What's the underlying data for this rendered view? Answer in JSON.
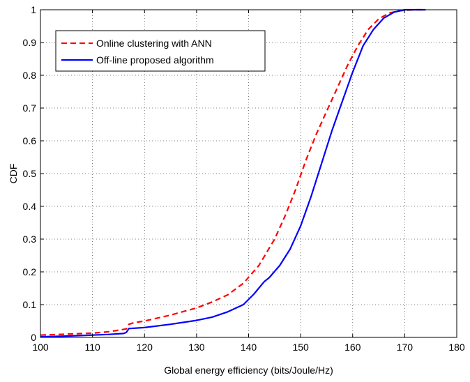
{
  "chart_data": {
    "type": "line",
    "title": "",
    "xlabel": "Global energy efficiency (bits/Joule/Hz)",
    "ylabel": "CDF",
    "xlim": [
      100,
      180
    ],
    "ylim": [
      0,
      1
    ],
    "xticks": [
      100,
      110,
      120,
      130,
      140,
      150,
      160,
      170,
      180
    ],
    "yticks": [
      0,
      0.1,
      0.2,
      0.3,
      0.4,
      0.5,
      0.6,
      0.7,
      0.8,
      0.9,
      1
    ],
    "xtick_labels": [
      "100",
      "110",
      "120",
      "130",
      "140",
      "150",
      "160",
      "170",
      "180"
    ],
    "ytick_labels": [
      "0",
      "0.1",
      "0.2",
      "0.3",
      "0.4",
      "0.5",
      "0.6",
      "0.7",
      "0.8",
      "0.9",
      "1"
    ],
    "grid": true,
    "legend_position": "top-left",
    "series": [
      {
        "name": "Online clustering with ANN",
        "color": "#ff0000",
        "style": "dashed",
        "x": [
          100,
          105,
          110,
          113,
          115,
          116.5,
          117,
          118,
          120,
          125,
          130,
          133,
          136,
          139,
          142,
          145,
          147,
          149,
          151,
          153,
          155,
          157,
          159,
          161,
          163,
          165,
          167,
          169,
          172,
          174
        ],
        "y": [
          0.007,
          0.01,
          0.013,
          0.017,
          0.022,
          0.026,
          0.04,
          0.045,
          0.05,
          0.068,
          0.09,
          0.108,
          0.13,
          0.165,
          0.22,
          0.3,
          0.37,
          0.45,
          0.54,
          0.62,
          0.69,
          0.76,
          0.83,
          0.89,
          0.94,
          0.972,
          0.99,
          0.997,
          1.0,
          1.0
        ]
      },
      {
        "name": "Off-line proposed algorithm",
        "color": "#0000ff",
        "style": "solid",
        "x": [
          100,
          105,
          110,
          113,
          116,
          116.5,
          117,
          120,
          125,
          130,
          133,
          136,
          139,
          141,
          143,
          144,
          146,
          148,
          150,
          152,
          154,
          156,
          158,
          160,
          162,
          164,
          166,
          168,
          170,
          174
        ],
        "y": [
          0.002,
          0.004,
          0.007,
          0.009,
          0.012,
          0.015,
          0.027,
          0.03,
          0.04,
          0.052,
          0.062,
          0.078,
          0.1,
          0.132,
          0.17,
          0.183,
          0.22,
          0.27,
          0.34,
          0.43,
          0.53,
          0.63,
          0.72,
          0.81,
          0.89,
          0.94,
          0.975,
          0.993,
          1.0,
          1.0
        ]
      }
    ]
  }
}
